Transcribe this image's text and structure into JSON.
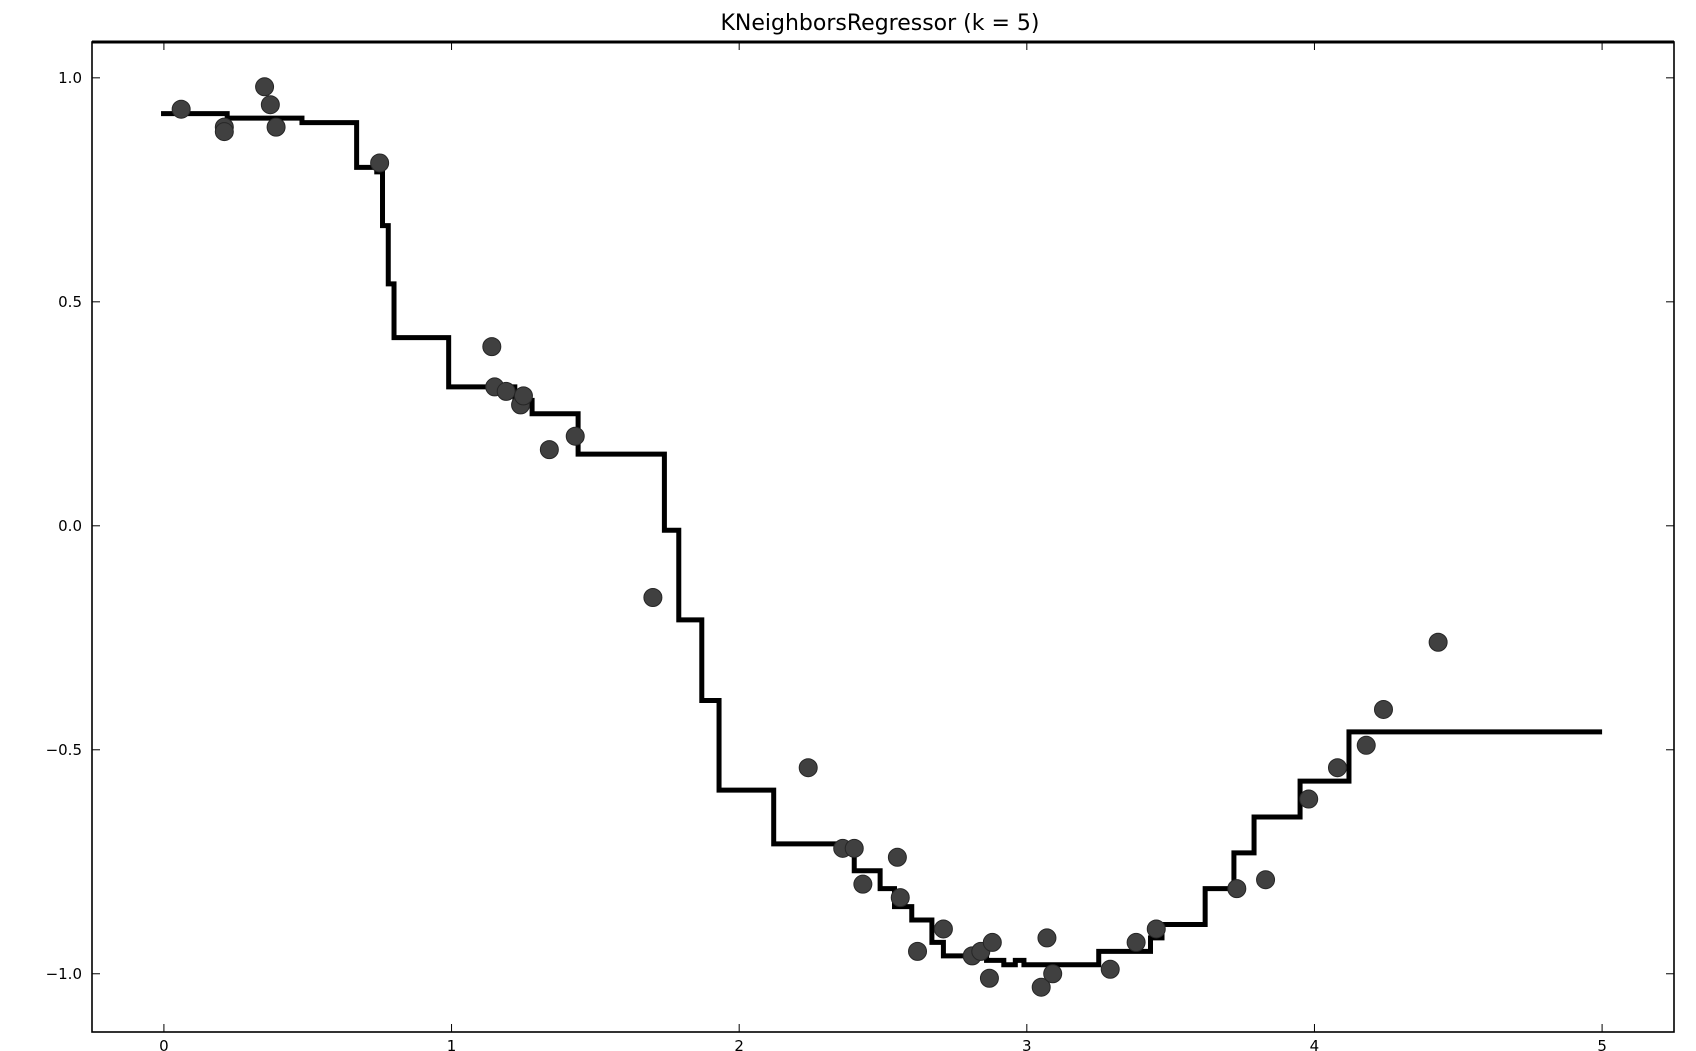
{
  "chart_data": {
    "type": "scatter",
    "title": "KNeighborsRegressor (k = 5)",
    "xlabel": "",
    "ylabel": "",
    "xlim": [
      -0.25,
      5.25
    ],
    "ylim": [
      -1.13,
      1.08
    ],
    "x_ticks": [
      0,
      1,
      2,
      3,
      4,
      5
    ],
    "y_ticks": [
      1.0,
      0.5,
      0.0,
      -0.5,
      -1.0
    ],
    "x_tick_labels": [
      "0",
      "1",
      "2",
      "3",
      "4",
      "5"
    ],
    "y_tick_labels": [
      "1.0",
      "0.5",
      "0.0",
      "−0.5",
      "−1.0"
    ],
    "grid": false,
    "legend": "none",
    "series": [
      {
        "kind": "scatter",
        "color": "#404040",
        "points": [
          [
            0.06,
            0.93
          ],
          [
            0.21,
            0.89
          ],
          [
            0.21,
            0.88
          ],
          [
            0.35,
            0.98
          ],
          [
            0.37,
            0.94
          ],
          [
            0.39,
            0.89
          ],
          [
            0.75,
            0.81
          ],
          [
            1.14,
            0.4
          ],
          [
            1.15,
            0.31
          ],
          [
            1.19,
            0.3
          ],
          [
            1.24,
            0.27
          ],
          [
            1.25,
            0.29
          ],
          [
            1.34,
            0.17
          ],
          [
            1.43,
            0.2
          ],
          [
            1.7,
            -0.16
          ],
          [
            2.24,
            -0.54
          ],
          [
            2.36,
            -0.72
          ],
          [
            2.4,
            -0.72
          ],
          [
            2.43,
            -0.8
          ],
          [
            2.55,
            -0.74
          ],
          [
            2.56,
            -0.83
          ],
          [
            2.62,
            -0.95
          ],
          [
            2.71,
            -0.9
          ],
          [
            2.81,
            -0.96
          ],
          [
            2.84,
            -0.95
          ],
          [
            2.87,
            -1.01
          ],
          [
            2.88,
            -0.93
          ],
          [
            3.05,
            -1.03
          ],
          [
            3.07,
            -0.92
          ],
          [
            3.09,
            -1.0
          ],
          [
            3.29,
            -0.99
          ],
          [
            3.38,
            -0.93
          ],
          [
            3.45,
            -0.9
          ],
          [
            3.73,
            -0.81
          ],
          [
            3.83,
            -0.79
          ],
          [
            3.98,
            -0.61
          ],
          [
            4.08,
            -0.54
          ],
          [
            4.18,
            -0.49
          ],
          [
            4.24,
            -0.41
          ],
          [
            4.43,
            -0.26
          ]
        ]
      },
      {
        "kind": "line",
        "color": "#000000",
        "points": [
          [
            -0.01,
            0.92
          ],
          [
            0.22,
            0.92
          ],
          [
            0.22,
            0.91
          ],
          [
            0.48,
            0.91
          ],
          [
            0.48,
            0.9
          ],
          [
            0.67,
            0.9
          ],
          [
            0.67,
            0.8
          ],
          [
            0.74,
            0.8
          ],
          [
            0.74,
            0.79
          ],
          [
            0.76,
            0.79
          ],
          [
            0.76,
            0.67
          ],
          [
            0.78,
            0.67
          ],
          [
            0.78,
            0.54
          ],
          [
            0.8,
            0.54
          ],
          [
            0.8,
            0.42
          ],
          [
            0.99,
            0.42
          ],
          [
            0.99,
            0.31
          ],
          [
            1.22,
            0.31
          ],
          [
            1.22,
            0.28
          ],
          [
            1.28,
            0.28
          ],
          [
            1.28,
            0.25
          ],
          [
            1.44,
            0.25
          ],
          [
            1.44,
            0.16
          ],
          [
            1.74,
            0.16
          ],
          [
            1.74,
            -0.01
          ],
          [
            1.79,
            -0.01
          ],
          [
            1.79,
            -0.21
          ],
          [
            1.87,
            -0.21
          ],
          [
            1.87,
            -0.39
          ],
          [
            1.93,
            -0.39
          ],
          [
            1.93,
            -0.59
          ],
          [
            2.12,
            -0.59
          ],
          [
            2.12,
            -0.71
          ],
          [
            2.4,
            -0.71
          ],
          [
            2.4,
            -0.77
          ],
          [
            2.49,
            -0.77
          ],
          [
            2.49,
            -0.81
          ],
          [
            2.54,
            -0.81
          ],
          [
            2.54,
            -0.85
          ],
          [
            2.6,
            -0.85
          ],
          [
            2.6,
            -0.88
          ],
          [
            2.67,
            -0.88
          ],
          [
            2.67,
            -0.93
          ],
          [
            2.71,
            -0.93
          ],
          [
            2.71,
            -0.96
          ],
          [
            2.86,
            -0.96
          ],
          [
            2.86,
            -0.97
          ],
          [
            2.92,
            -0.97
          ],
          [
            2.92,
            -0.98
          ],
          [
            2.96,
            -0.98
          ],
          [
            2.96,
            -0.97
          ],
          [
            2.99,
            -0.97
          ],
          [
            2.99,
            -0.98
          ],
          [
            3.25,
            -0.98
          ],
          [
            3.25,
            -0.95
          ],
          [
            3.43,
            -0.95
          ],
          [
            3.43,
            -0.92
          ],
          [
            3.47,
            -0.92
          ],
          [
            3.47,
            -0.89
          ],
          [
            3.62,
            -0.89
          ],
          [
            3.62,
            -0.81
          ],
          [
            3.72,
            -0.81
          ],
          [
            3.72,
            -0.73
          ],
          [
            3.79,
            -0.73
          ],
          [
            3.79,
            -0.65
          ],
          [
            3.95,
            -0.65
          ],
          [
            3.95,
            -0.57
          ],
          [
            4.12,
            -0.57
          ],
          [
            4.12,
            -0.46
          ],
          [
            5.0,
            -0.46
          ]
        ]
      }
    ]
  }
}
